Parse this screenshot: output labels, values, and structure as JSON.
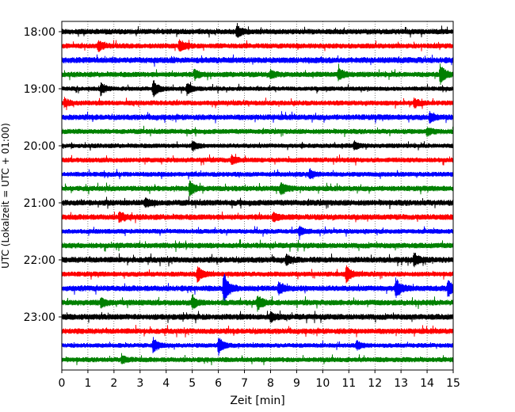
{
  "chart_data": {
    "type": "line",
    "subtype": "helicorder",
    "xlabel": "Zeit  [min]",
    "ylabel": "UTC (Lokalzeit = UTC + 01:00)",
    "xlim": [
      0,
      15
    ],
    "x_ticks": [
      "0",
      "1",
      "2",
      "3",
      "4",
      "5",
      "6",
      "7",
      "8",
      "9",
      "10",
      "11",
      "12",
      "13",
      "14",
      "15"
    ],
    "y_tick_labels": [
      "18:00",
      "19:00",
      "20:00",
      "21:00",
      "22:00",
      "23:00"
    ],
    "trace_start_times": [
      "18:00",
      "18:15",
      "18:30",
      "18:45",
      "19:00",
      "19:15",
      "19:30",
      "19:45",
      "20:00",
      "20:15",
      "20:30",
      "20:45",
      "21:00",
      "21:15",
      "21:30",
      "21:45",
      "22:00",
      "22:15",
      "22:30",
      "22:45",
      "23:00",
      "23:15",
      "23:30",
      "23:45"
    ],
    "trace_colors": [
      "#000000",
      "#ff0000",
      "#0000ff",
      "#008000"
    ],
    "grid": "vertical dotted",
    "events": [
      {
        "trace": 0,
        "t_min": 6.7,
        "amp": 0.5
      },
      {
        "trace": 1,
        "t_min": 1.4,
        "amp": 0.45
      },
      {
        "trace": 1,
        "t_min": 4.5,
        "amp": 0.55
      },
      {
        "trace": 3,
        "t_min": 5.1,
        "amp": 0.4
      },
      {
        "trace": 3,
        "t_min": 8.0,
        "amp": 0.35
      },
      {
        "trace": 3,
        "t_min": 10.6,
        "amp": 0.5
      },
      {
        "trace": 3,
        "t_min": 14.5,
        "amp": 0.9
      },
      {
        "trace": 4,
        "t_min": 1.5,
        "amp": 0.5
      },
      {
        "trace": 4,
        "t_min": 3.5,
        "amp": 0.75
      },
      {
        "trace": 4,
        "t_min": 4.8,
        "amp": 0.5
      },
      {
        "trace": 5,
        "t_min": 0.1,
        "amp": 0.35
      },
      {
        "trace": 5,
        "t_min": 13.5,
        "amp": 0.4
      },
      {
        "trace": 6,
        "t_min": 14.1,
        "amp": 0.45
      },
      {
        "trace": 7,
        "t_min": 14.0,
        "amp": 0.35
      },
      {
        "trace": 8,
        "t_min": 5.0,
        "amp": 0.45
      },
      {
        "trace": 8,
        "t_min": 11.2,
        "amp": 0.35
      },
      {
        "trace": 9,
        "t_min": 6.5,
        "amp": 0.35
      },
      {
        "trace": 10,
        "t_min": 9.5,
        "amp": 0.35
      },
      {
        "trace": 11,
        "t_min": 4.9,
        "amp": 0.65
      },
      {
        "trace": 11,
        "t_min": 8.4,
        "amp": 0.55
      },
      {
        "trace": 12,
        "t_min": 3.2,
        "amp": 0.35
      },
      {
        "trace": 13,
        "t_min": 2.2,
        "amp": 0.5
      },
      {
        "trace": 13,
        "t_min": 8.1,
        "amp": 0.4
      },
      {
        "trace": 14,
        "t_min": 9.1,
        "amp": 0.4
      },
      {
        "trace": 16,
        "t_min": 8.6,
        "amp": 0.4
      },
      {
        "trace": 16,
        "t_min": 13.5,
        "amp": 0.55
      },
      {
        "trace": 17,
        "t_min": 5.2,
        "amp": 0.75
      },
      {
        "trace": 17,
        "t_min": 10.9,
        "amp": 0.75
      },
      {
        "trace": 18,
        "t_min": 6.2,
        "amp": 1.5
      },
      {
        "trace": 18,
        "t_min": 8.3,
        "amp": 0.6
      },
      {
        "trace": 18,
        "t_min": 12.8,
        "amp": 0.9
      },
      {
        "trace": 18,
        "t_min": 14.8,
        "amp": 0.75
      },
      {
        "trace": 19,
        "t_min": 1.5,
        "amp": 0.4
      },
      {
        "trace": 19,
        "t_min": 5.0,
        "amp": 0.55
      },
      {
        "trace": 19,
        "t_min": 7.5,
        "amp": 0.65
      },
      {
        "trace": 20,
        "t_min": 8.0,
        "amp": 0.35
      },
      {
        "trace": 22,
        "t_min": 3.5,
        "amp": 0.7
      },
      {
        "trace": 22,
        "t_min": 6.0,
        "amp": 0.8
      },
      {
        "trace": 22,
        "t_min": 11.3,
        "amp": 0.4
      },
      {
        "trace": 23,
        "t_min": 2.3,
        "amp": 0.35
      }
    ]
  }
}
